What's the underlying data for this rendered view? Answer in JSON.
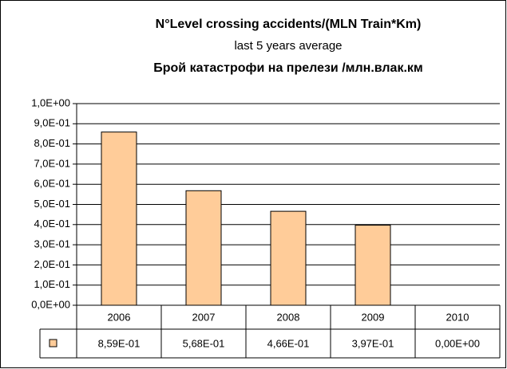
{
  "chart_data": {
    "type": "bar",
    "title": "N°Level crossing accidents/(MLN Train*Km)",
    "subtitle": "last 5 years average",
    "subtitle2": "Брой катастрофи  на прелези /млн.влак.км",
    "categories": [
      "2006",
      "2007",
      "2008",
      "2009",
      "2010"
    ],
    "values": [
      0.859,
      0.568,
      0.466,
      0.397,
      0
    ],
    "value_labels": [
      "8,59E-01",
      "5,68E-01",
      "4,66E-01",
      "3,97E-01",
      "0,00E+00"
    ],
    "color": "#ffcc99",
    "ylim": [
      0,
      1
    ],
    "yticks": [
      {
        "value": 0,
        "label": "0,0E+00"
      },
      {
        "value": 0.1,
        "label": "1,0E-01"
      },
      {
        "value": 0.2,
        "label": "2,0E-01"
      },
      {
        "value": 0.3,
        "label": "3,0E-01"
      },
      {
        "value": 0.4,
        "label": "4,0E-01"
      },
      {
        "value": 0.5,
        "label": "5,0E-01"
      },
      {
        "value": 0.6,
        "label": "6,0E-01"
      },
      {
        "value": 0.7,
        "label": "7,0E-01"
      },
      {
        "value": 0.8,
        "label": "8,0E-01"
      },
      {
        "value": 0.9,
        "label": "9,0E-01"
      },
      {
        "value": 1,
        "label": "1,0E+00"
      }
    ],
    "grid": true
  }
}
